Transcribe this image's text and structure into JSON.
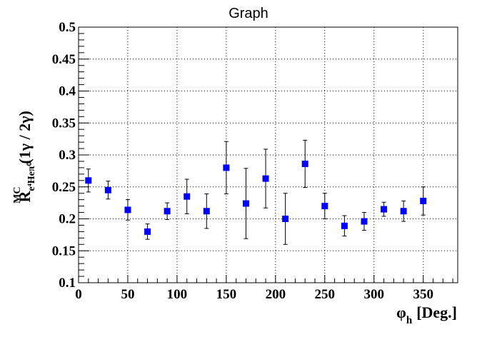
{
  "chart_data": {
    "type": "scatter",
    "title": "Graph",
    "xlabel": {
      "main": "φ",
      "sub": "h",
      "unit": "[Deg.]"
    },
    "ylabel": {
      "main": "R",
      "sub": "e⁴Heπ⁰",
      "sup": "MC",
      "tail": "(1γ / 2γ)"
    },
    "xlim": [
      0,
      385
    ],
    "ylim": [
      0.1,
      0.5
    ],
    "xticks": [
      0,
      50,
      100,
      150,
      200,
      250,
      300,
      350
    ],
    "yticks": [
      0.1,
      0.15,
      0.2,
      0.25,
      0.3,
      0.35,
      0.4,
      0.45,
      0.5
    ],
    "grid": true,
    "series": [
      {
        "color": "#0000ff",
        "marker": "square",
        "x": [
          10,
          30,
          50,
          70,
          90,
          110,
          130,
          150,
          170,
          190,
          210,
          230,
          250,
          270,
          290,
          310,
          330,
          350
        ],
        "y": [
          0.26,
          0.245,
          0.214,
          0.18,
          0.212,
          0.235,
          0.212,
          0.28,
          0.224,
          0.263,
          0.2,
          0.286,
          0.22,
          0.189,
          0.196,
          0.215,
          0.212,
          0.228
        ],
        "yerr": [
          0.018,
          0.014,
          0.016,
          0.012,
          0.013,
          0.027,
          0.027,
          0.041,
          0.055,
          0.046,
          0.04,
          0.037,
          0.02,
          0.016,
          0.014,
          0.011,
          0.016,
          0.022
        ]
      }
    ]
  }
}
